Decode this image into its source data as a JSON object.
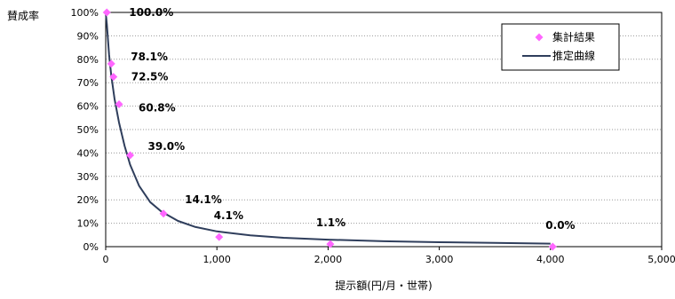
{
  "chart_data": {
    "type": "scatter",
    "ylabel": "賛成率",
    "xlabel": "提示額(円/月・世帯)",
    "xlim": [
      0,
      5000
    ],
    "ylim": [
      0,
      100
    ],
    "x_ticks": [
      "0",
      "1,000",
      "2,000",
      "3,000",
      "4,000",
      "5,000"
    ],
    "y_ticks": [
      "0%",
      "10%",
      "20%",
      "30%",
      "40%",
      "50%",
      "60%",
      "70%",
      "80%",
      "90%",
      "100%"
    ],
    "grid": "horizontal dotted",
    "legend_position": "top-right",
    "series": [
      {
        "name": "集計結果",
        "kind": "markers",
        "marker": "diamond",
        "color": "#ff66ff",
        "points": [
          {
            "x": 10,
            "y": 100.0,
            "label": "100.0%"
          },
          {
            "x": 50,
            "y": 78.1,
            "label": "78.1%"
          },
          {
            "x": 70,
            "y": 72.5,
            "label": "72.5%"
          },
          {
            "x": 120,
            "y": 60.8,
            "label": "60.8%"
          },
          {
            "x": 220,
            "y": 39.0,
            "label": "39.0%"
          },
          {
            "x": 520,
            "y": 14.1,
            "label": "14.1%"
          },
          {
            "x": 1020,
            "y": 4.1,
            "label": "4.1%"
          },
          {
            "x": 2020,
            "y": 1.1,
            "label": "1.1%"
          },
          {
            "x": 4020,
            "y": 0.0,
            "label": "0.0%"
          }
        ]
      },
      {
        "name": "推定曲線",
        "kind": "line",
        "color": "#2f3e5c",
        "points": [
          {
            "x": 0,
            "y": 100
          },
          {
            "x": 10,
            "y": 95
          },
          {
            "x": 30,
            "y": 82
          },
          {
            "x": 50,
            "y": 73
          },
          {
            "x": 80,
            "y": 63
          },
          {
            "x": 120,
            "y": 53
          },
          {
            "x": 170,
            "y": 43
          },
          {
            "x": 220,
            "y": 35
          },
          {
            "x": 300,
            "y": 26
          },
          {
            "x": 400,
            "y": 19
          },
          {
            "x": 500,
            "y": 15
          },
          {
            "x": 650,
            "y": 11
          },
          {
            "x": 800,
            "y": 8.5
          },
          {
            "x": 1000,
            "y": 6.5
          },
          {
            "x": 1300,
            "y": 4.8
          },
          {
            "x": 1600,
            "y": 3.8
          },
          {
            "x": 2000,
            "y": 3.0
          },
          {
            "x": 2500,
            "y": 2.3
          },
          {
            "x": 3000,
            "y": 1.9
          },
          {
            "x": 3500,
            "y": 1.6
          },
          {
            "x": 4000,
            "y": 1.3
          }
        ]
      }
    ]
  }
}
